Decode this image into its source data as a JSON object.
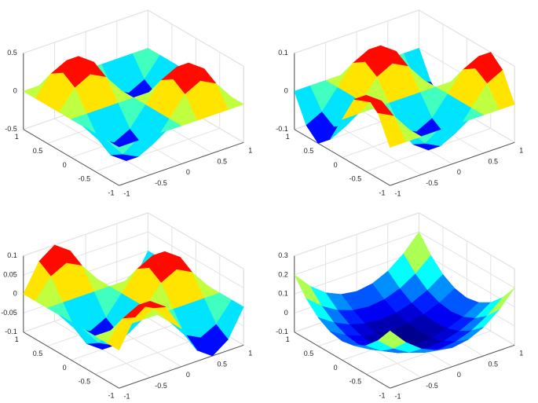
{
  "chart_data": [
    {
      "type": "surface",
      "colormap": "jet",
      "x": [
        -1,
        -0.75,
        -0.5,
        -0.25,
        0,
        0.25,
        0.5,
        0.75,
        1
      ],
      "y": [
        -1,
        -0.75,
        -0.5,
        -0.25,
        0,
        0.25,
        0.5,
        0.75,
        1
      ],
      "z": [
        [
          0,
          0,
          0,
          0,
          0,
          0,
          0,
          0,
          0
        ],
        [
          0,
          -0.25,
          -0.354,
          -0.25,
          0,
          0.25,
          0.354,
          0.25,
          0
        ],
        [
          0,
          -0.354,
          -0.5,
          -0.354,
          0,
          0.354,
          0.5,
          0.354,
          0
        ],
        [
          0,
          -0.25,
          -0.354,
          -0.25,
          0,
          0.25,
          0.354,
          0.25,
          0
        ],
        [
          0,
          0,
          0,
          0,
          0,
          0,
          0,
          0,
          0
        ],
        [
          0,
          0.25,
          0.354,
          0.25,
          0,
          -0.25,
          -0.354,
          -0.25,
          0
        ],
        [
          0,
          0.354,
          0.5,
          0.354,
          0,
          -0.354,
          -0.5,
          -0.354,
          0
        ],
        [
          0,
          0.25,
          0.354,
          0.25,
          0,
          -0.25,
          -0.354,
          -0.25,
          0
        ],
        [
          0,
          0,
          0,
          0,
          0,
          0,
          0,
          0,
          0
        ]
      ],
      "xlim": [
        -1,
        1
      ],
      "ylim": [
        -1,
        1
      ],
      "zlim": [
        -0.5,
        0.5
      ],
      "xticks": [
        -1,
        -0.5,
        0,
        0.5,
        1
      ],
      "yticks": [
        -1,
        -0.5,
        0,
        0.5,
        1
      ],
      "zticks": [
        -0.5,
        0,
        0.5
      ]
    },
    {
      "type": "surface",
      "colormap": "jet",
      "x": [
        -1,
        -0.75,
        -0.5,
        -0.25,
        0,
        0.25,
        0.5,
        0.75,
        1
      ],
      "y": [
        -1,
        -0.75,
        -0.5,
        -0.25,
        0,
        0.25,
        0.5,
        0.75,
        1
      ],
      "z": [
        [
          0,
          0,
          0,
          0,
          0,
          0,
          0,
          0,
          0
        ],
        [
          0.071,
          0.05,
          0,
          -0.05,
          -0.071,
          -0.05,
          0,
          0.05,
          0.071
        ],
        [
          0.1,
          0.071,
          0,
          -0.071,
          -0.1,
          -0.071,
          0,
          0.071,
          0.1
        ],
        [
          0.071,
          0.05,
          0,
          -0.05,
          -0.071,
          -0.05,
          0,
          0.05,
          0.071
        ],
        [
          0,
          0,
          0,
          0,
          0,
          0,
          0,
          0,
          0
        ],
        [
          -0.071,
          -0.05,
          0,
          0.05,
          0.071,
          0.05,
          0,
          -0.05,
          -0.071
        ],
        [
          -0.1,
          -0.071,
          0,
          0.071,
          0.1,
          0.071,
          0,
          -0.071,
          -0.1
        ],
        [
          -0.071,
          -0.05,
          0,
          0.05,
          0.071,
          0.05,
          0,
          -0.05,
          -0.071
        ],
        [
          0,
          0,
          0,
          0,
          0,
          0,
          0,
          0,
          0
        ]
      ],
      "xlim": [
        -1,
        1
      ],
      "ylim": [
        -1,
        1
      ],
      "zlim": [
        -0.1,
        0.1
      ],
      "xticks": [
        -1,
        -0.5,
        0,
        0.5,
        1
      ],
      "yticks": [
        -1,
        -0.5,
        0,
        0.5,
        1
      ],
      "zticks": [
        -0.1,
        0,
        0.1
      ]
    },
    {
      "type": "surface",
      "colormap": "jet",
      "x": [
        -1,
        -0.75,
        -0.5,
        -0.25,
        0,
        0.25,
        0.5,
        0.75,
        1
      ],
      "y": [
        -1,
        -0.75,
        -0.5,
        -0.25,
        0,
        0.25,
        0.5,
        0.75,
        1
      ],
      "z": [
        [
          0,
          0.071,
          0.1,
          0.071,
          0,
          -0.071,
          -0.1,
          -0.071,
          0
        ],
        [
          0,
          0.05,
          0.071,
          0.05,
          0,
          -0.05,
          -0.071,
          -0.05,
          0
        ],
        [
          0,
          0,
          0,
          0,
          0,
          0,
          0,
          0,
          0
        ],
        [
          0,
          -0.05,
          -0.071,
          -0.05,
          0,
          0.05,
          0.071,
          0.05,
          0
        ],
        [
          0,
          -0.071,
          -0.1,
          -0.071,
          0,
          0.071,
          0.1,
          0.071,
          0
        ],
        [
          0,
          -0.05,
          -0.071,
          -0.05,
          0,
          0.05,
          0.071,
          0.05,
          0
        ],
        [
          0,
          0,
          0,
          0,
          0,
          0,
          0,
          0,
          0
        ],
        [
          0,
          0.05,
          0.071,
          0.05,
          0,
          -0.05,
          -0.071,
          -0.05,
          0
        ],
        [
          0,
          0.071,
          0.1,
          0.071,
          0,
          -0.071,
          -0.1,
          -0.071,
          0
        ]
      ],
      "xlim": [
        -1,
        1
      ],
      "ylim": [
        -1,
        1
      ],
      "zlim": [
        -0.1,
        0.1
      ],
      "xticks": [
        -1,
        -0.5,
        0,
        0.5,
        1
      ],
      "yticks": [
        -1,
        -0.5,
        0,
        0.5,
        1
      ],
      "zticks": [
        -0.1,
        -0.05,
        0,
        0.05,
        0.1
      ]
    },
    {
      "type": "surface",
      "colormap": "jet",
      "x": [
        -1,
        -0.75,
        -0.5,
        -0.25,
        0,
        0.25,
        0.5,
        0.75,
        1
      ],
      "y": [
        -1,
        -0.75,
        -0.5,
        -0.25,
        0,
        0.25,
        0.5,
        0.75,
        1
      ],
      "z": [
        [
          0.2,
          0.113,
          0.05,
          0.013,
          0,
          0.013,
          0.05,
          0.113,
          0.2
        ],
        [
          0.113,
          0.044,
          -0.005,
          -0.034,
          -0.044,
          -0.034,
          -0.005,
          0.044,
          0.113
        ],
        [
          0.05,
          -0.005,
          -0.044,
          -0.067,
          -0.075,
          -0.067,
          -0.044,
          -0.005,
          0.05
        ],
        [
          0.013,
          -0.034,
          -0.067,
          -0.087,
          -0.094,
          -0.087,
          -0.067,
          -0.034,
          0.013
        ],
        [
          0,
          -0.044,
          -0.075,
          -0.094,
          -0.1,
          -0.094,
          -0.075,
          -0.044,
          0
        ],
        [
          0.013,
          -0.034,
          -0.067,
          -0.087,
          -0.094,
          -0.087,
          -0.067,
          -0.034,
          0.013
        ],
        [
          0.05,
          -0.005,
          -0.044,
          -0.067,
          -0.075,
          -0.067,
          -0.044,
          -0.005,
          0.05
        ],
        [
          0.113,
          0.044,
          -0.005,
          -0.034,
          -0.044,
          -0.034,
          -0.005,
          0.044,
          0.113
        ],
        [
          0.2,
          0.113,
          0.05,
          0.013,
          0,
          0.013,
          0.05,
          0.113,
          0.2
        ]
      ],
      "xlim": [
        -1,
        1
      ],
      "ylim": [
        -1,
        1
      ],
      "zlim": [
        -0.1,
        0.3
      ],
      "xticks": [
        -1,
        -0.5,
        0,
        0.5,
        1
      ],
      "yticks": [
        -1,
        -0.5,
        0,
        0.5,
        1
      ],
      "zticks": [
        -0.1,
        0,
        0.1,
        0.2,
        0.3
      ]
    }
  ]
}
